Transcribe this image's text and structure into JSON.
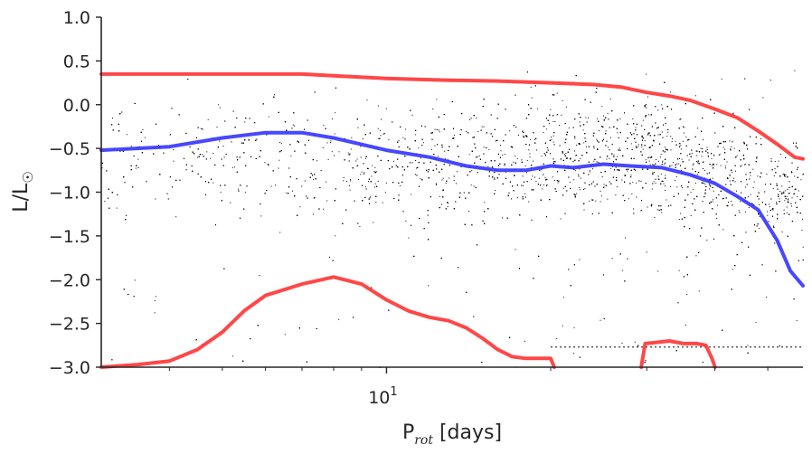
{
  "chart_data": {
    "type": "scatter",
    "title": "",
    "xlabel": {
      "main": "P",
      "sub": "rot",
      "suffix": " [days]"
    },
    "ylabel": {
      "main": "L/L",
      "symbol": "☉"
    },
    "xscale": "log",
    "xlim": [
      3,
      58
    ],
    "ylim": [
      -3.0,
      1.0
    ],
    "grid": false,
    "legend": "none",
    "yticks": [
      1.0,
      0.5,
      0.0,
      -0.5,
      -1.0,
      -1.5,
      -2.0,
      -2.5,
      -3.0
    ],
    "ytick_labels": [
      "1.0",
      "0.5",
      "0.0",
      "−0.5",
      "−1.0",
      "−1.5",
      "−2.0",
      "−2.5",
      "−3.0"
    ],
    "xticks_major": [
      10
    ],
    "xtick_labels": [
      {
        "base": "10",
        "exp": "1"
      }
    ],
    "xticks_minor": [
      4,
      5,
      6,
      7,
      8,
      9,
      20,
      30,
      40,
      50
    ],
    "scatter": {
      "color": "#000000",
      "description": "dense cloud of points; density increases toward long periods and the upper band",
      "density_profile": [
        {
          "x": 3,
          "y_center": -0.6,
          "relative_density": 0.25
        },
        {
          "x": 10,
          "y_center": -0.7,
          "relative_density": 0.45
        },
        {
          "x": 20,
          "y_center": -0.6,
          "relative_density": 0.8
        },
        {
          "x": 30,
          "y_center": -0.5,
          "relative_density": 1.0
        },
        {
          "x": 50,
          "y_center": -1.0,
          "relative_density": 0.8
        }
      ]
    },
    "series": [
      {
        "color": "#ff3333",
        "x": [
          3.0,
          4.0,
          5.0,
          6.0,
          7.0,
          8.0,
          10.0,
          13.0,
          16.0,
          20.0,
          24.0,
          27.0,
          30.0,
          33.0,
          36.0,
          40.0,
          44.0,
          48.0,
          52.0,
          56.0,
          58.0
        ],
        "y": [
          0.35,
          0.35,
          0.35,
          0.35,
          0.35,
          0.33,
          0.3,
          0.28,
          0.27,
          0.25,
          0.23,
          0.2,
          0.14,
          0.1,
          0.05,
          -0.05,
          -0.15,
          -0.3,
          -0.45,
          -0.6,
          -0.62
        ]
      },
      {
        "color": "#3333ff",
        "x": [
          3.0,
          4.0,
          5.0,
          6.0,
          7.0,
          8.0,
          10.0,
          12.0,
          14.0,
          16.0,
          18.0,
          20.0,
          22.0,
          25.0,
          28.0,
          32.0,
          36.0,
          40.0,
          44.0,
          48.0,
          52.0,
          55.0,
          58.0
        ],
        "y": [
          -0.52,
          -0.48,
          -0.38,
          -0.32,
          -0.32,
          -0.38,
          -0.52,
          -0.6,
          -0.7,
          -0.75,
          -0.75,
          -0.7,
          -0.72,
          -0.68,
          -0.7,
          -0.72,
          -0.8,
          -0.9,
          -1.05,
          -1.2,
          -1.55,
          -1.9,
          -2.07
        ]
      },
      {
        "color": "#ff3333",
        "x": [
          3.0,
          3.5,
          4.0,
          4.5,
          5.0,
          5.5,
          6.0,
          7.0,
          8.0,
          9.0,
          10.0,
          11.0,
          12.0,
          13.0,
          14.0,
          15.0,
          16.0,
          17.0,
          18.0,
          19.0,
          20.0,
          20.3
        ],
        "y": [
          -3.0,
          -2.97,
          -2.93,
          -2.8,
          -2.6,
          -2.35,
          -2.18,
          -2.05,
          -1.97,
          -2.05,
          -2.23,
          -2.36,
          -2.43,
          -2.47,
          -2.55,
          -2.67,
          -2.8,
          -2.88,
          -2.9,
          -2.9,
          -2.9,
          -3.0
        ]
      },
      {
        "color": "#ff3333",
        "x": [
          29.3,
          29.8,
          31.0,
          33.0,
          35.0,
          37.0,
          38.5,
          39.5,
          40.0
        ],
        "y": [
          -3.0,
          -2.73,
          -2.72,
          -2.7,
          -2.73,
          -2.73,
          -2.75,
          -2.9,
          -3.0
        ]
      }
    ],
    "reference_line": {
      "y": -2.77,
      "x_start": 20,
      "x_end": 58,
      "style": "dotted",
      "color": "#000000"
    }
  }
}
